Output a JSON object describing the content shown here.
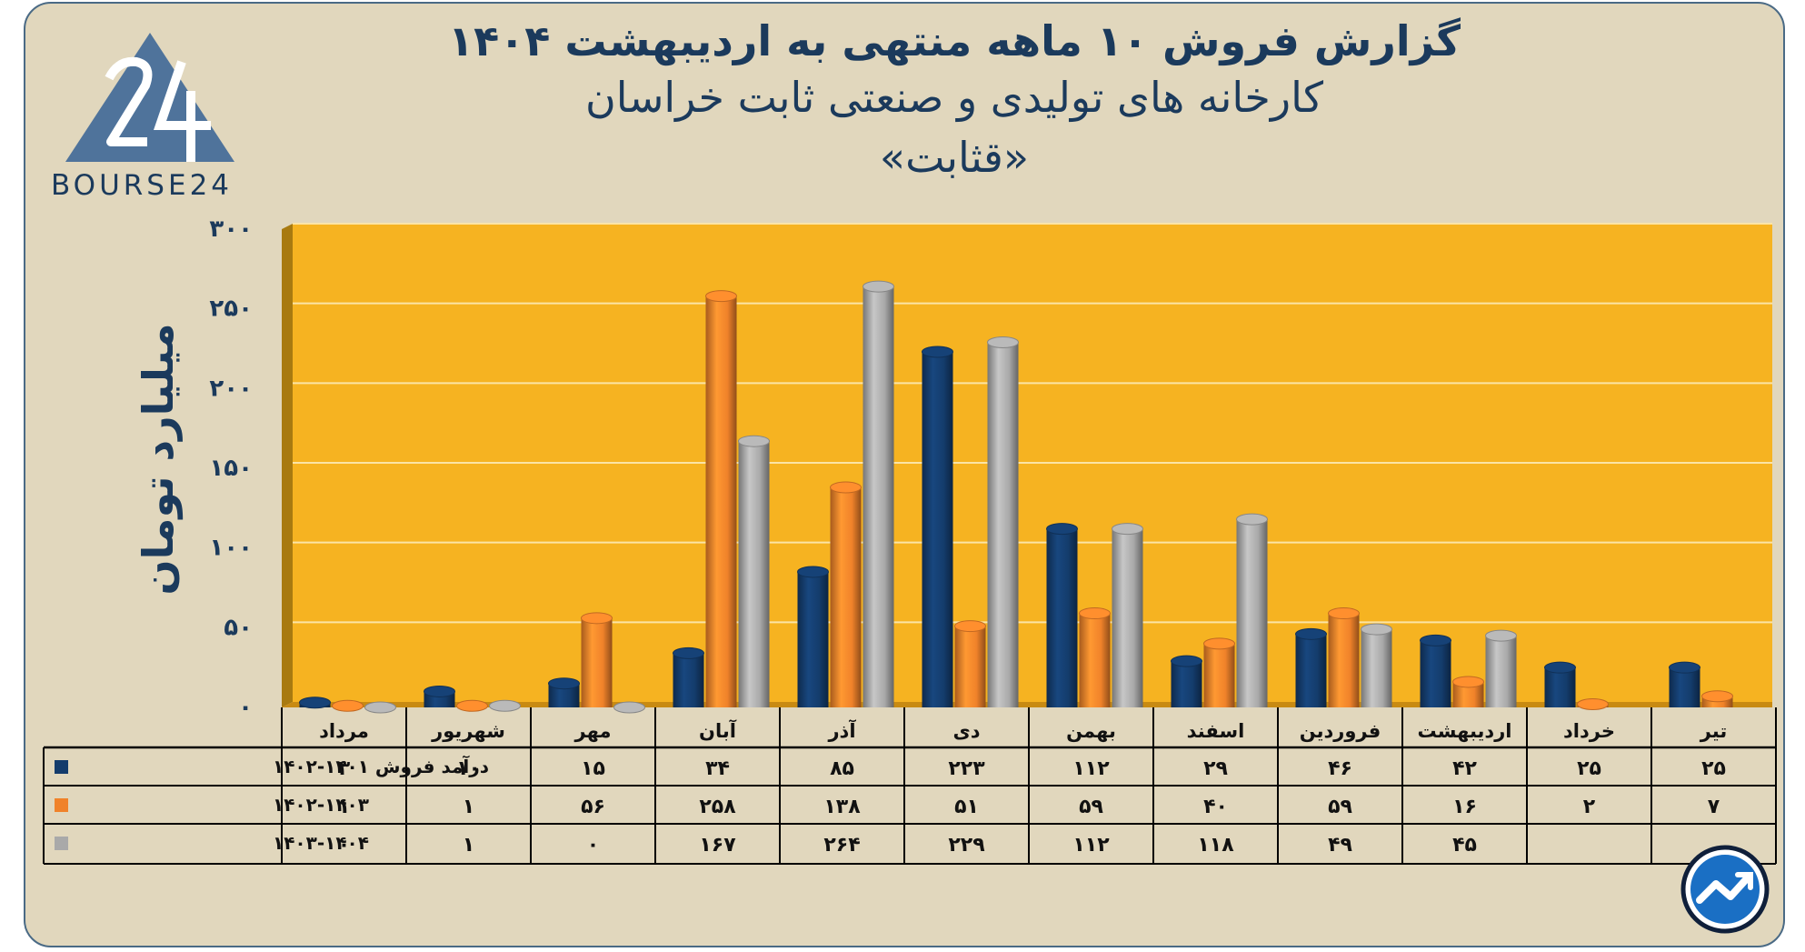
{
  "header": {
    "title_line1": "گزارش  فروش ۱۰ ماهه منتهی به اردیبهشت ۱۴۰۴",
    "title_line2": "کارخانه های تولیدی و صنعتی ثابت خراسان",
    "title_line3": "«قثابت»"
  },
  "logo": {
    "text": "BOURSE24",
    "mark": "24-triangle-logo",
    "color": "#4f739b"
  },
  "badge": {
    "icon": "trend-arrow-circle-icon",
    "color": "#1a6fc4"
  },
  "colors": {
    "plot_background": "#f6b321",
    "frame_background": "#e1d7bd",
    "series": [
      "#143c6c",
      "#f0822a",
      "#a9a9a9"
    ]
  },
  "chart_data": {
    "type": "bar",
    "ylabel": "میلیارد تومان",
    "ylim": [
      0,
      300
    ],
    "yticks": [
      "۰",
      "۵۰",
      "۱۰۰",
      "۱۵۰",
      "۲۰۰",
      "۲۵۰",
      "۳۰۰"
    ],
    "grid": true,
    "categories": [
      "مرداد",
      "شهریور",
      "مهر",
      "آبان",
      "آذر",
      "دی",
      "بهمن",
      "اسفند",
      "فروردین",
      "اردیبهشت",
      "خرداد",
      "تیر"
    ],
    "series": [
      {
        "name": "درآمد فروش ۱۴۰۱-۱۴۰۲",
        "values": [
          3,
          10,
          15,
          34,
          85,
          223,
          112,
          29,
          46,
          42,
          25,
          25
        ],
        "labels": [
          "۳",
          "۱۰",
          "۱۵",
          "۳۴",
          "۸۵",
          "۲۲۳",
          "۱۱۲",
          "۲۹",
          "۴۶",
          "۴۲",
          "۲۵",
          "۲۵"
        ]
      },
      {
        "name": "۱۴۰۲-۱۴۰۳",
        "values": [
          1,
          1,
          56,
          258,
          138,
          51,
          59,
          40,
          59,
          16,
          2,
          7
        ],
        "labels": [
          "۱",
          "۱",
          "۵۶",
          "۲۵۸",
          "۱۳۸",
          "۵۱",
          "۵۹",
          "۴۰",
          "۵۹",
          "۱۶",
          "۲",
          "۷"
        ]
      },
      {
        "name": "۱۴۰۳-۱۴۰۴",
        "values": [
          0,
          1,
          0,
          167,
          264,
          229,
          112,
          118,
          49,
          45,
          null,
          null
        ],
        "labels": [
          "۰",
          "۱",
          "۰",
          "۱۶۷",
          "۲۶۴",
          "۲۲۹",
          "۱۱۲",
          "۱۱۸",
          "۴۹",
          "۴۵",
          "",
          ""
        ]
      }
    ]
  }
}
